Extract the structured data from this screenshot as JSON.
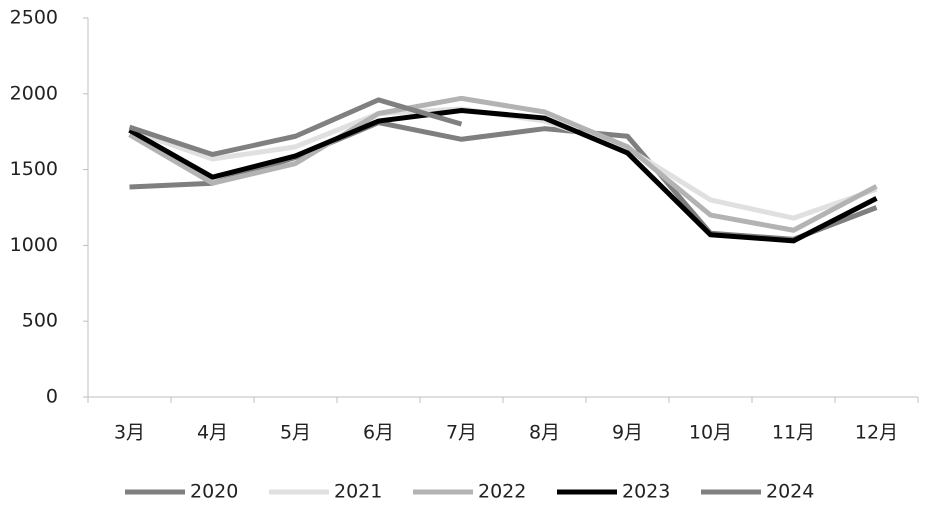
{
  "chart_data": {
    "type": "line",
    "categories": [
      "3月",
      "4月",
      "5月",
      "6月",
      "7月",
      "8月",
      "9月",
      "10月",
      "11月",
      "12月"
    ],
    "series": [
      {
        "name": "2020",
        "color": "#7f7f7f",
        "values": [
          1385,
          1410,
          1580,
          1810,
          1700,
          1770,
          1720,
          1080,
          1040,
          1250
        ]
      },
      {
        "name": "2021",
        "color": "#e0e0e0",
        "values": [
          1760,
          1570,
          1650,
          1870,
          1900,
          1820,
          1640,
          1300,
          1180,
          1370
        ]
      },
      {
        "name": "2022",
        "color": "#b3b3b3",
        "values": [
          1730,
          1410,
          1540,
          1870,
          1970,
          1880,
          1650,
          1200,
          1100,
          1390
        ]
      },
      {
        "name": "2023",
        "color": "#000000",
        "values": [
          1760,
          1450,
          1590,
          1820,
          1890,
          1840,
          1610,
          1070,
          1030,
          1310
        ]
      },
      {
        "name": "2024",
        "color": "#808080",
        "values": [
          1780,
          1600,
          1720,
          1960,
          1800,
          null,
          null,
          null,
          null,
          null
        ]
      }
    ],
    "ylim": [
      0,
      2500
    ],
    "yticks": [
      0,
      500,
      1000,
      1500,
      2000,
      2500
    ],
    "grid": false,
    "legend": "bottom"
  }
}
